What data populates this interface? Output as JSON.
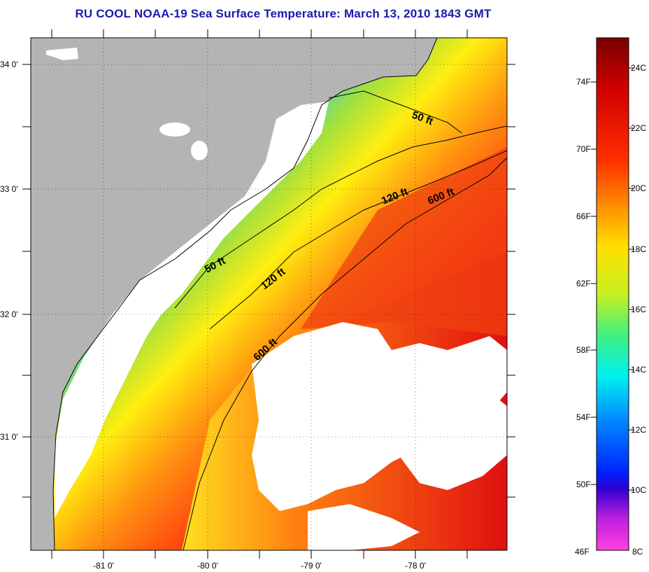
{
  "title": "RU COOL  NOAA-19  Sea Surface Temperature:  March 13, 2010 1843 GMT",
  "map": {
    "lat_labels": [
      "34 0'",
      "33 0'",
      "32 0'",
      "31 0'"
    ],
    "lon_labels": [
      "-81 0'",
      "-80 0'",
      "-79 0'",
      "-78 0'"
    ],
    "isobaths": [
      "50 ft",
      "50 ft",
      "120 ft",
      "120 ft",
      "600 ft",
      "600 ft"
    ],
    "colors": {
      "land": "#b4b4b4",
      "cloud": "#ffffff"
    }
  },
  "colorbar": {
    "fahrenheit_labels": [
      "74F",
      "70F",
      "66F",
      "62F",
      "58F",
      "54F",
      "50F",
      "46F"
    ],
    "celsius_labels": [
      "24C",
      "22C",
      "20C",
      "18C",
      "16C",
      "14C",
      "12C",
      "10C",
      "8C"
    ],
    "range_celsius": [
      8,
      25
    ]
  }
}
